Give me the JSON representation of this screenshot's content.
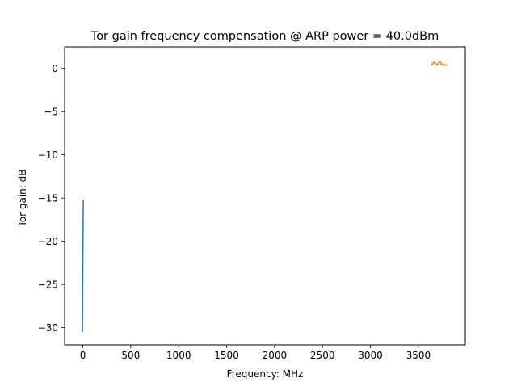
{
  "chart_data": {
    "type": "line",
    "title": "Tor gain frequency compensation @ ARP power = 40.0dBm",
    "xlabel": "Frequency: MHz",
    "ylabel": "Tor gain: dB",
    "xlim": [
      -190,
      3990
    ],
    "ylim": [
      -32,
      2.5
    ],
    "xticks": [
      0,
      500,
      1000,
      1500,
      2000,
      2500,
      3000,
      3500
    ],
    "yticks": [
      0,
      -5,
      -10,
      -15,
      -20,
      -25,
      -30
    ],
    "grid": false,
    "legend": "none",
    "series": [
      {
        "color": "#1f77b4",
        "points": [
          [
            -5,
            -30.5
          ],
          [
            0,
            -22.8
          ],
          [
            5,
            -15.2
          ]
        ]
      },
      {
        "color": "#ff7f0e",
        "points": [
          [
            3630,
            0.35
          ],
          [
            3650,
            0.6
          ],
          [
            3665,
            0.75
          ],
          [
            3680,
            0.55
          ],
          [
            3695,
            0.4
          ],
          [
            3710,
            0.65
          ],
          [
            3725,
            0.85
          ],
          [
            3740,
            0.5
          ],
          [
            3755,
            0.55
          ],
          [
            3770,
            0.35
          ],
          [
            3785,
            0.45
          ],
          [
            3800,
            0.4
          ]
        ]
      }
    ]
  }
}
